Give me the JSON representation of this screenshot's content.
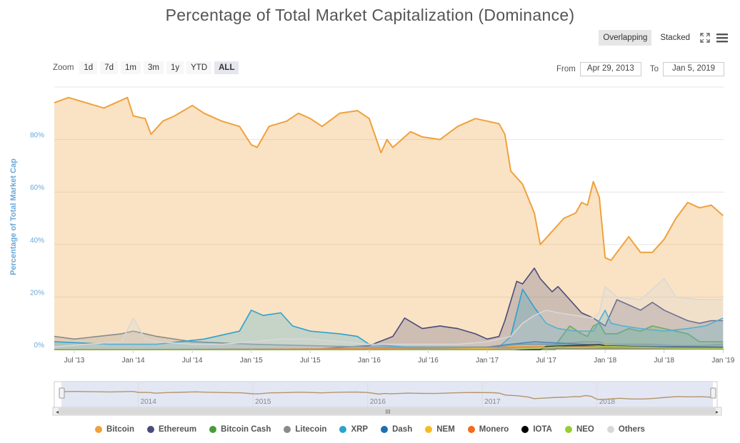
{
  "title": "Percentage of Total Market Capitalization (Dominance)",
  "view_modes": [
    {
      "label": "Overlapping",
      "active": true
    },
    {
      "label": "Stacked",
      "active": false
    }
  ],
  "toolbar_icons": [
    "fullscreen-icon",
    "menu-icon"
  ],
  "zoom": {
    "label": "Zoom",
    "buttons": [
      {
        "label": "1d",
        "active": false
      },
      {
        "label": "7d",
        "active": false
      },
      {
        "label": "1m",
        "active": false
      },
      {
        "label": "3m",
        "active": false
      },
      {
        "label": "1y",
        "active": false
      },
      {
        "label": "YTD",
        "active": false
      },
      {
        "label": "ALL",
        "active": true
      }
    ]
  },
  "range": {
    "from_label": "From",
    "from_value": "Apr 29, 2013",
    "to_label": "To",
    "to_value": "Jan 5, 2019"
  },
  "chart_data": {
    "type": "area",
    "title": "Percentage of Total Market Capitalization (Dominance)",
    "ylabel": "Percentage of Total Market Cap",
    "xlabel": "",
    "ylim": [
      0,
      100
    ],
    "yticks": [
      "0%",
      "20%",
      "40%",
      "60%",
      "80%"
    ],
    "ytick_values": [
      0,
      20,
      40,
      60,
      80
    ],
    "xlim": [
      2013.33,
      2019.01
    ],
    "xticks": [
      {
        "label": "Jul '13",
        "value": 2013.5
      },
      {
        "label": "Jan '14",
        "value": 2014.0
      },
      {
        "label": "Jul '14",
        "value": 2014.5
      },
      {
        "label": "Jan '15",
        "value": 2015.0
      },
      {
        "label": "Jul '15",
        "value": 2015.5
      },
      {
        "label": "Jan '16",
        "value": 2016.0
      },
      {
        "label": "Jul '16",
        "value": 2016.5
      },
      {
        "label": "Jan '17",
        "value": 2017.0
      },
      {
        "label": "Jul '17",
        "value": 2017.5
      },
      {
        "label": "Jan '18",
        "value": 2018.0
      },
      {
        "label": "Jul '18",
        "value": 2018.5
      },
      {
        "label": "Jan '19",
        "value": 2019.0
      }
    ],
    "grid": true,
    "legend_position": "bottom",
    "series": [
      {
        "name": "Bitcoin",
        "color": "#f0a13c",
        "x": [
          2013.33,
          2013.45,
          2013.6,
          2013.75,
          2013.9,
          2013.95,
          2014.0,
          2014.1,
          2014.15,
          2014.25,
          2014.35,
          2014.5,
          2014.6,
          2014.75,
          2014.9,
          2015.0,
          2015.05,
          2015.15,
          2015.3,
          2015.4,
          2015.5,
          2015.6,
          2015.75,
          2015.9,
          2016.0,
          2016.1,
          2016.15,
          2016.2,
          2016.35,
          2016.45,
          2016.6,
          2016.75,
          2016.9,
          2017.0,
          2017.1,
          2017.15,
          2017.2,
          2017.3,
          2017.4,
          2017.45,
          2017.55,
          2017.65,
          2017.75,
          2017.8,
          2017.85,
          2017.9,
          2017.95,
          2018.0,
          2018.05,
          2018.1,
          2018.2,
          2018.3,
          2018.4,
          2018.5,
          2018.6,
          2018.7,
          2018.8,
          2018.9,
          2019.0
        ],
        "y": [
          94,
          96,
          94,
          92,
          95,
          96,
          89,
          88,
          82,
          87,
          89,
          93,
          90,
          87,
          85,
          78,
          77,
          85,
          87,
          90,
          88,
          85,
          90,
          91,
          88,
          75,
          80,
          77,
          83,
          81,
          80,
          85,
          88,
          87,
          86,
          82,
          68,
          63,
          52,
          40,
          45,
          50,
          52,
          56,
          55,
          64,
          58,
          35,
          34,
          37,
          43,
          37,
          37,
          42,
          50,
          56,
          54,
          55,
          51
        ]
      },
      {
        "name": "Ethereum",
        "color": "#4b4b7b",
        "x": [
          2013.33,
          2015.5,
          2015.8,
          2016.0,
          2016.2,
          2016.3,
          2016.45,
          2016.6,
          2016.75,
          2016.9,
          2017.0,
          2017.1,
          2017.15,
          2017.25,
          2017.3,
          2017.4,
          2017.45,
          2017.55,
          2017.6,
          2017.8,
          2017.9,
          2018.0,
          2018.1,
          2018.2,
          2018.3,
          2018.4,
          2018.5,
          2018.6,
          2018.7,
          2018.8,
          2018.9,
          2019.0
        ],
        "y": [
          0,
          0,
          1,
          1.5,
          5,
          12,
          8,
          9,
          8,
          6,
          4,
          5,
          11,
          26,
          25,
          31,
          27,
          22,
          24,
          14,
          12,
          9,
          19,
          17,
          15,
          18,
          15,
          13,
          11,
          10,
          11,
          11
        ]
      },
      {
        "name": "Bitcoin Cash",
        "color": "#4a9b3a",
        "x": [
          2013.33,
          2017.58,
          2017.6,
          2017.7,
          2017.8,
          2017.85,
          2017.9,
          2017.95,
          2018.0,
          2018.1,
          2018.2,
          2018.3,
          2018.4,
          2018.5,
          2018.6,
          2018.7,
          2018.8,
          2018.9,
          2019.0
        ],
        "y": [
          0,
          0,
          3,
          9,
          6,
          5,
          9,
          10,
          6,
          6,
          8,
          7,
          9,
          8,
          7,
          6,
          3,
          3,
          3
        ]
      },
      {
        "name": "Litecoin",
        "color": "#8a8a8a",
        "x": [
          2013.33,
          2013.5,
          2013.9,
          2014.0,
          2014.2,
          2014.5,
          2015.0,
          2015.5,
          2016.0,
          2016.5,
          2017.0,
          2017.2,
          2017.4,
          2017.6,
          2017.8,
          2017.95,
          2018.0,
          2018.2,
          2018.4,
          2018.6,
          2018.8,
          2019.0
        ],
        "y": [
          5,
          4,
          6,
          7,
          5,
          3,
          2,
          1.5,
          1,
          1,
          1,
          2,
          2,
          2,
          3,
          3,
          2,
          2,
          2,
          1.5,
          1.5,
          2
        ]
      },
      {
        "name": "XRP",
        "color": "#2aa3cf",
        "x": [
          2013.33,
          2013.8,
          2014.2,
          2014.6,
          2014.9,
          2015.0,
          2015.1,
          2015.25,
          2015.35,
          2015.5,
          2015.75,
          2015.9,
          2016.0,
          2016.3,
          2016.6,
          2016.9,
          2017.1,
          2017.2,
          2017.3,
          2017.4,
          2017.5,
          2017.6,
          2017.75,
          2017.9,
          2018.0,
          2018.05,
          2018.15,
          2018.3,
          2018.5,
          2018.7,
          2018.85,
          2019.0
        ],
        "y": [
          3,
          2,
          2,
          4,
          7,
          15,
          13,
          14,
          9,
          7,
          6,
          5,
          2,
          1,
          1,
          1,
          1,
          5,
          23,
          16,
          10,
          8,
          7,
          7,
          15,
          10,
          9,
          8,
          7,
          8,
          9,
          12
        ]
      },
      {
        "name": "Dash",
        "color": "#1e6fb0",
        "x": [
          2013.33,
          2016.5,
          2017.0,
          2017.2,
          2017.4,
          2017.6,
          2017.8,
          2018.0,
          2018.3,
          2018.6,
          2019.0
        ],
        "y": [
          0,
          0.3,
          0.8,
          2,
          3,
          2.5,
          2,
          1.5,
          1.2,
          1.1,
          1.0
        ]
      },
      {
        "name": "NEM",
        "color": "#f5bd1f",
        "x": [
          2013.33,
          2016.5,
          2017.0,
          2017.3,
          2017.5,
          2017.8,
          2018.0,
          2018.2,
          2018.6,
          2019.0
        ],
        "y": [
          0,
          0.1,
          0.4,
          1.5,
          1.5,
          1.2,
          1.8,
          1.0,
          0.8,
          0.6
        ]
      },
      {
        "name": "Monero",
        "color": "#f36b1a",
        "x": [
          2013.33,
          2015.0,
          2016.0,
          2016.5,
          2017.0,
          2017.4,
          2017.8,
          2018.0,
          2018.5,
          2019.0
        ],
        "y": [
          0,
          0.1,
          0.4,
          0.8,
          0.8,
          1.0,
          1.2,
          1.0,
          0.8,
          0.8
        ]
      },
      {
        "name": "IOTA",
        "color": "#000000",
        "x": [
          2013.33,
          2017.45,
          2017.5,
          2017.7,
          2017.9,
          2017.95,
          2018.0,
          2018.3,
          2018.6,
          2019.0
        ],
        "y": [
          0,
          0,
          1.2,
          1.5,
          1.8,
          1.9,
          1.5,
          1.0,
          0.8,
          0.7
        ]
      },
      {
        "name": "NEO",
        "color": "#9acd32",
        "x": [
          2013.33,
          2017.2,
          2017.4,
          2017.6,
          2017.8,
          2017.95,
          2018.0,
          2018.2,
          2018.6,
          2019.0
        ],
        "y": [
          0,
          0,
          0.5,
          1.0,
          0.8,
          1.0,
          1.2,
          1.0,
          0.6,
          0.5
        ]
      },
      {
        "name": "Others",
        "color": "#d8d8d8",
        "x": [
          2013.33,
          2013.6,
          2013.9,
          2014.0,
          2014.1,
          2014.2,
          2014.5,
          2014.75,
          2015.0,
          2015.25,
          2015.5,
          2015.75,
          2016.0,
          2016.4,
          2016.75,
          2017.0,
          2017.2,
          2017.3,
          2017.4,
          2017.5,
          2017.6,
          2017.75,
          2017.9,
          2017.95,
          2018.0,
          2018.1,
          2018.3,
          2018.5,
          2018.6,
          2018.8,
          2019.0
        ],
        "y": [
          1,
          2,
          3,
          12,
          4,
          3,
          2,
          2,
          3,
          4,
          4,
          3,
          2,
          2,
          2,
          3,
          5,
          10,
          13,
          15,
          14,
          13,
          12,
          14,
          24,
          20,
          19,
          27,
          20,
          19,
          19
        ]
      }
    ]
  },
  "navigator": {
    "labels": [
      "2014",
      "2015",
      "2016",
      "2017",
      "2018"
    ],
    "label_values": [
      2014,
      2015,
      2016,
      2017,
      2018
    ],
    "scroll_grip": "III"
  }
}
